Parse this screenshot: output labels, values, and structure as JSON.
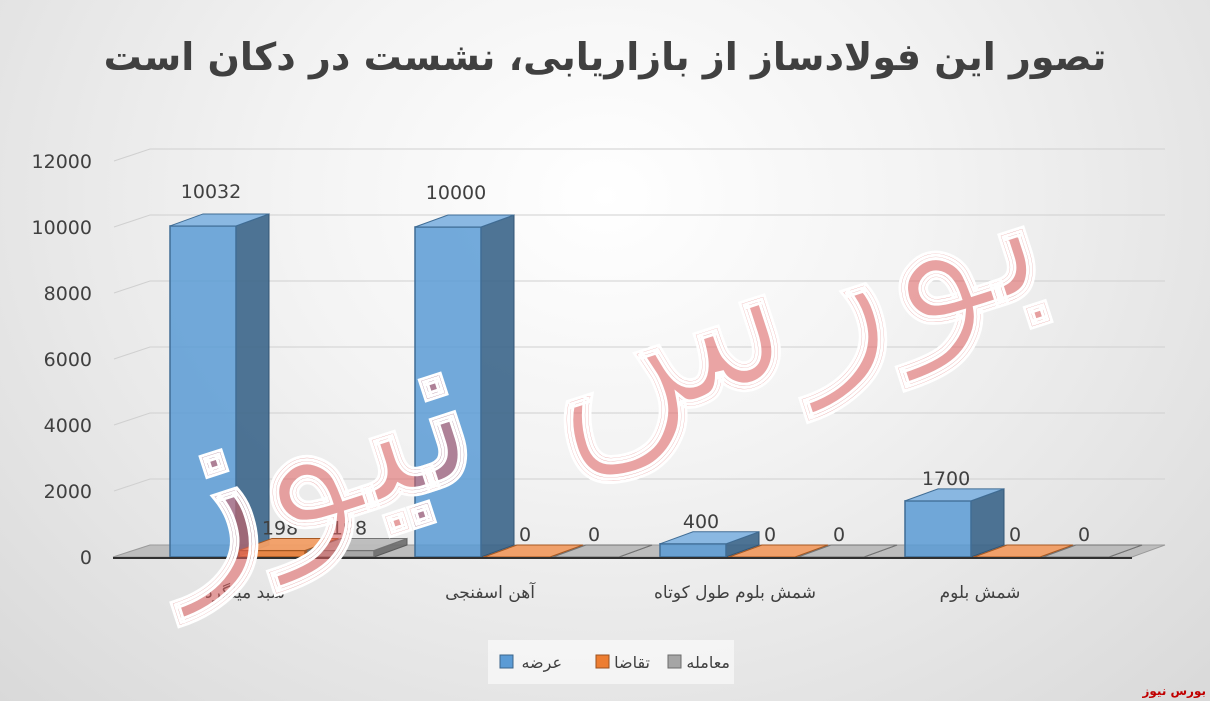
{
  "chart_data": {
    "type": "bar",
    "title": "تصور این فولادساز از بازاریابی، نشست در دکان است",
    "categories": [
      "سبد میلگرد",
      "آهن اسفنجی",
      "شمش بلوم طول کوتاه",
      "شمش بلوم"
    ],
    "series": [
      {
        "name": "عرضه",
        "values": [
          10032,
          10000,
          400,
          1700
        ],
        "color": "#5b9bd5"
      },
      {
        "name": "تقاضا",
        "values": [
          198,
          0,
          0,
          0
        ],
        "color": "#ed7d31"
      },
      {
        "name": "معامله",
        "values": [
          198,
          0,
          0,
          0
        ],
        "color": "#a5a5a5"
      }
    ],
    "data_labels": [
      [
        "10032",
        "10000",
        "400",
        "1700"
      ],
      [
        "198",
        "0",
        "0",
        "0"
      ],
      [
        "198",
        "0",
        "0",
        "0"
      ]
    ],
    "ylim": [
      0,
      12000
    ],
    "yticks": [
      "0",
      "2000",
      "4000",
      "6000",
      "8000",
      "10000",
      "12000"
    ],
    "grid": true,
    "legend": "bottom",
    "style": "3d-column",
    "watermark": "بورس نیوز",
    "corner_logo": "بورس نیوز"
  }
}
